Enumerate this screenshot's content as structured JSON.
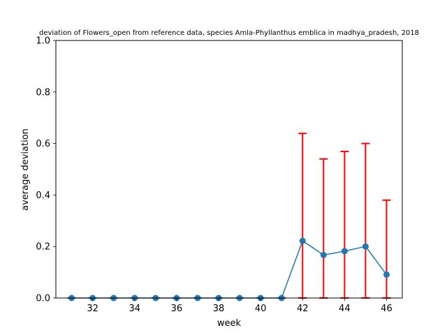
{
  "chart_data": {
    "type": "line",
    "title": "deviation of Flowers_open from reference data, species Amla-Phyllanthus emblica in madhya_pradesh, 2018",
    "xlabel": "week",
    "ylabel": "average deviation",
    "xlim": [
      30.25,
      46.75
    ],
    "ylim": [
      0,
      1.0
    ],
    "xticks": [
      32,
      34,
      36,
      38,
      40,
      42,
      44,
      46
    ],
    "yticks": [
      0.0,
      0.2,
      0.4,
      0.6,
      0.8,
      1.0
    ],
    "ytick_labels": [
      "0.0",
      "0.2",
      "0.4",
      "0.6",
      "0.8",
      "1.0"
    ],
    "grid": false,
    "series": [
      {
        "x": [
          31,
          32,
          33,
          34,
          35,
          36,
          37,
          38,
          39,
          40,
          41,
          42,
          43,
          44,
          45,
          46
        ],
        "y": [
          0,
          0,
          0,
          0,
          0,
          0,
          0,
          0,
          0,
          0,
          0,
          0.222,
          0.167,
          0.182,
          0.2,
          0.091
        ],
        "error_upper": [
          0,
          0,
          0,
          0,
          0,
          0,
          0,
          0,
          0,
          0,
          0,
          0.417,
          0.373,
          0.387,
          0.4,
          0.289
        ],
        "line_color": "#1f77b4",
        "error_color": "#ff0000"
      }
    ]
  }
}
